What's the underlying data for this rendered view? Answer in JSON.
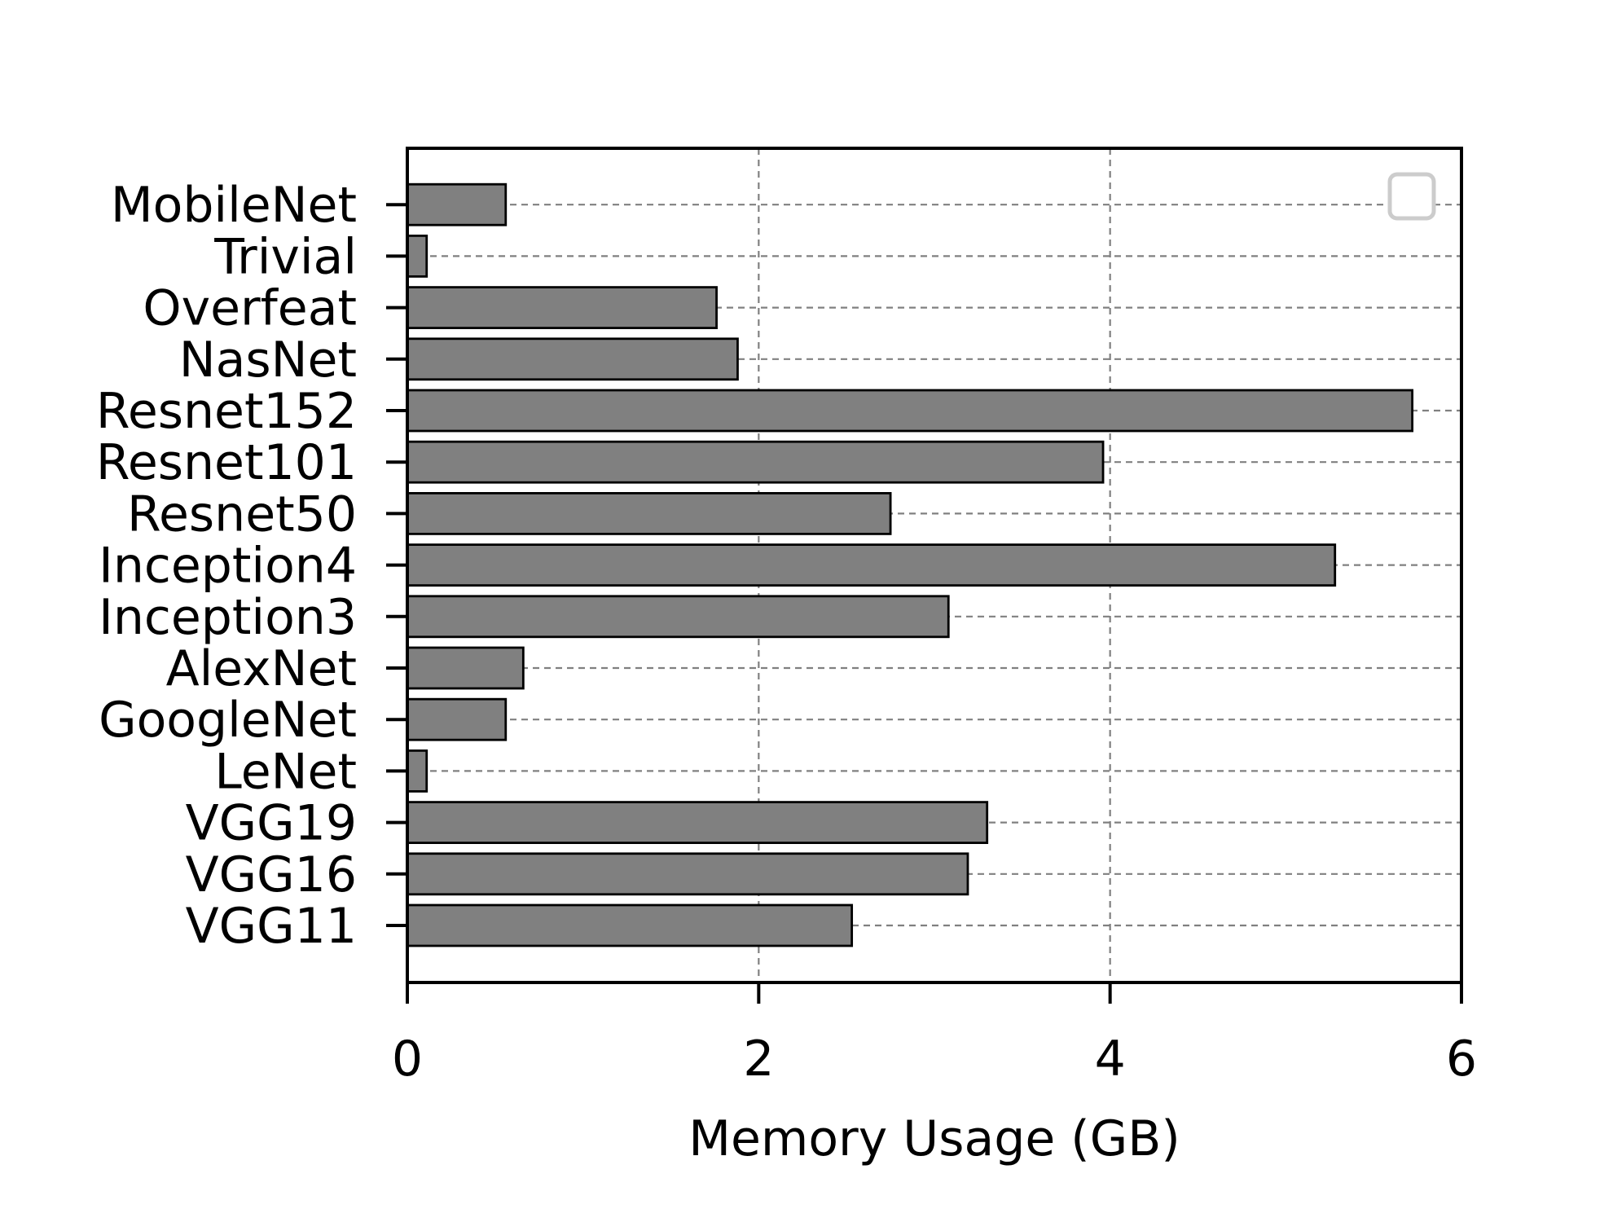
{
  "chart_data": {
    "type": "bar",
    "orientation": "horizontal",
    "title": "",
    "xlabel": "Memory Usage (GB)",
    "ylabel": "",
    "xlim": [
      0,
      6
    ],
    "xticks": [
      "0",
      "2",
      "4",
      "6"
    ],
    "categories": [
      "VGG11",
      "VGG16",
      "VGG19",
      "LeNet",
      "GoogleNet",
      "AlexNet",
      "Inception3",
      "Inception4",
      "Resnet50",
      "Resnet101",
      "Resnet152",
      "NasNet",
      "Overfeat",
      "Trivial",
      "MobileNet"
    ],
    "values": [
      2.53,
      3.19,
      3.3,
      0.11,
      0.56,
      0.66,
      3.08,
      5.28,
      2.75,
      3.96,
      5.72,
      1.88,
      1.76,
      0.11,
      0.56
    ],
    "grid": true,
    "grid_style": "dashed",
    "legend": "top-right",
    "colors": {
      "bar_fill": "#808080",
      "bar_edge": "#000000",
      "grid": "#808080",
      "legend_border": "#cccccc"
    }
  }
}
